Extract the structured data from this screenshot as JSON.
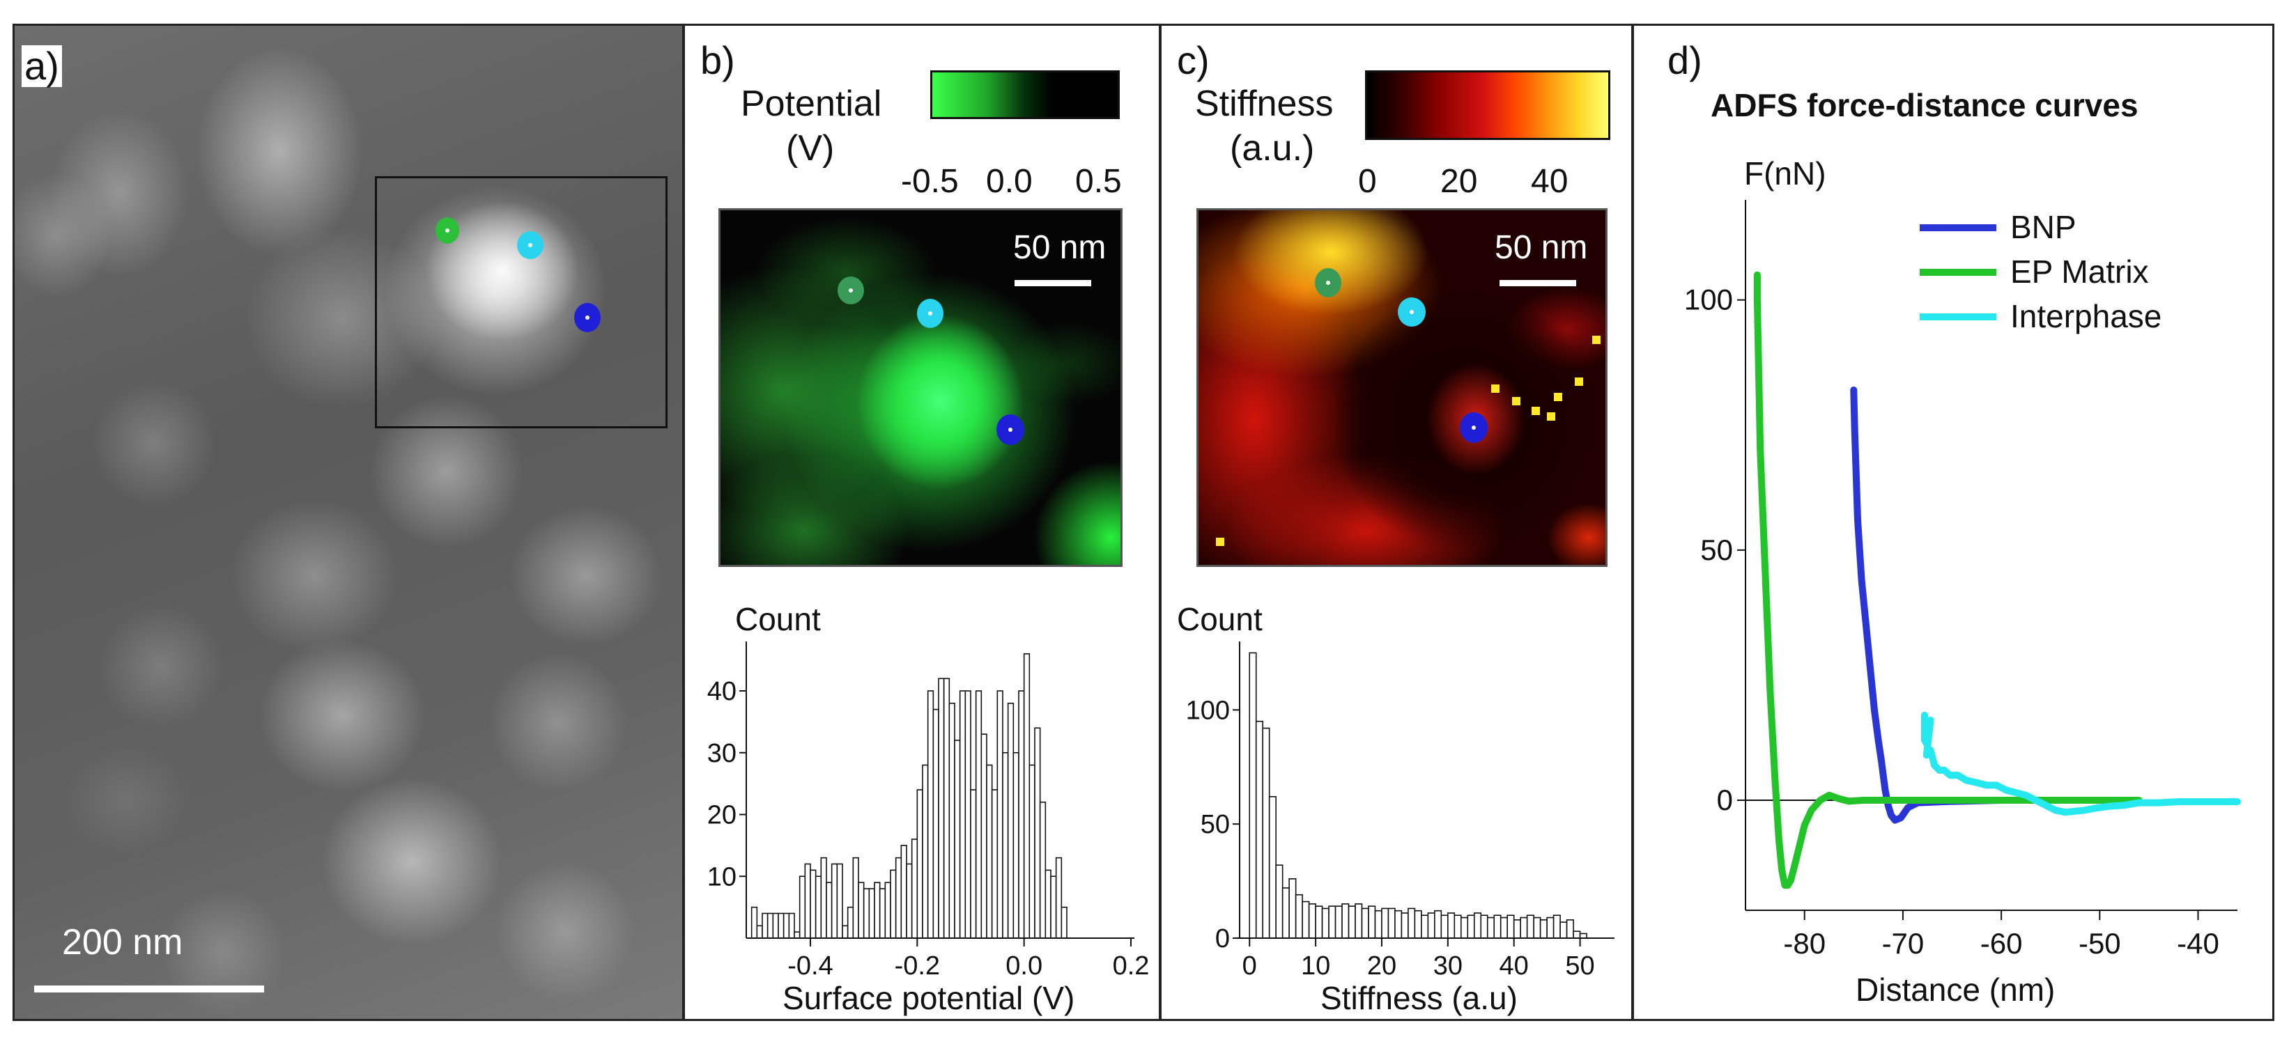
{
  "panel_a": {
    "label": "a)",
    "scale_bar_label": "200 nm"
  },
  "panel_b": {
    "label": "b)",
    "colorbar_title_line1": "Potential",
    "colorbar_title_line2": "(V)",
    "colorbar_ticks": [
      "-0.5",
      "0.0",
      "0.5"
    ],
    "scale_bar_label": "50 nm",
    "histogram": {
      "type": "bar",
      "ylabel": "Count",
      "xlabel": "Surface potential (V)",
      "xlim": [
        -0.52,
        0.2
      ],
      "ylim": [
        0,
        48
      ],
      "xticks": [
        "-0.4",
        "-0.2",
        "0.0",
        "0.2"
      ],
      "xtick_values": [
        -0.4,
        -0.2,
        0.0,
        0.2
      ],
      "yticks": [
        "10",
        "20",
        "30",
        "40"
      ],
      "ytick_values": [
        10,
        20,
        30,
        40
      ],
      "bin_width": 0.01,
      "bin_start": -0.51,
      "values": [
        5,
        2,
        4,
        4,
        4,
        4,
        4,
        4,
        1,
        10,
        12,
        11,
        10,
        13,
        9,
        12,
        12,
        2,
        5,
        13,
        9,
        8,
        8,
        9,
        8,
        9,
        11,
        13,
        15,
        12,
        16,
        24,
        28,
        40,
        37,
        42,
        42,
        38,
        32,
        40,
        40,
        24,
        40,
        33,
        28,
        24,
        40,
        30,
        38,
        30,
        40,
        46,
        28,
        34,
        22,
        11,
        10,
        13,
        5
      ]
    }
  },
  "panel_c": {
    "label": "c)",
    "colorbar_title_line1": "Stiffness",
    "colorbar_title_line2": "(a.u.)",
    "colorbar_ticks": [
      "0",
      "20",
      "40"
    ],
    "scale_bar_label": "50 nm",
    "histogram": {
      "type": "bar",
      "ylabel": "Count",
      "xlabel": "Stiffness (a.u)",
      "xlim": [
        -1.5,
        55
      ],
      "ylim": [
        0,
        130
      ],
      "xticks": [
        "0",
        "10",
        "20",
        "30",
        "40",
        "50"
      ],
      "xtick_values": [
        0,
        10,
        20,
        30,
        40,
        50
      ],
      "yticks": [
        "0",
        "50",
        "100"
      ],
      "ytick_values": [
        0,
        50,
        100
      ],
      "bin_width": 1,
      "bin_start": 0,
      "values": [
        125,
        95,
        92,
        62,
        32,
        22,
        26,
        19,
        16,
        15,
        14,
        13,
        14,
        14,
        15,
        14,
        15,
        13,
        14,
        12,
        13,
        13,
        12,
        11,
        13,
        12,
        10,
        11,
        12,
        10,
        11,
        10,
        9,
        10,
        11,
        10,
        9,
        10,
        9,
        10,
        8,
        9,
        10,
        9,
        8,
        9,
        10,
        7,
        8,
        3,
        2
      ]
    }
  },
  "panel_d": {
    "label": "d)",
    "title": "ADFS force-distance curves",
    "ylabel": "F(nN)",
    "xlabel": "Distance (nm)",
    "xticks": [
      "-80",
      "-70",
      "-60",
      "-50",
      "-40"
    ],
    "xtick_values": [
      -80,
      -70,
      -60,
      -50,
      -40
    ],
    "yticks": [
      "0",
      "50",
      "100"
    ],
    "ytick_values": [
      0,
      50,
      100
    ],
    "legend": [
      "BNP",
      "EP Matrix",
      "Interphase"
    ],
    "chart_data": {
      "type": "line",
      "title": "ADFS force-distance curves",
      "xlabel": "Distance (nm)",
      "ylabel": "F(nN)",
      "xlim": [
        -86,
        -36
      ],
      "ylim": [
        -22,
        120
      ],
      "legend_position": "top-right",
      "series": [
        {
          "name": "BNP",
          "color": "#2a35d6",
          "x": [
            -75,
            -74.9,
            -74.6,
            -74.2,
            -73.8,
            -73.3,
            -72.9,
            -72.5,
            -72.2,
            -72.0,
            -71.8,
            -71.5,
            -71.2,
            -70.8,
            -70.2,
            -69.5,
            -68.5,
            -66,
            -60,
            -54,
            -50,
            -47
          ],
          "y": [
            82,
            74,
            56,
            44,
            36,
            26,
            18,
            12,
            8,
            5,
            2,
            -1,
            -3,
            -4,
            -3.5,
            -1.5,
            -0.5,
            -0.3,
            0,
            0,
            0,
            0
          ]
        },
        {
          "name": "EP Matrix",
          "color": "#22c42a",
          "x": [
            -84.8,
            -84.8,
            -84.5,
            -84.0,
            -83.5,
            -83.0,
            -82.6,
            -82.3,
            -82.0,
            -81.7,
            -81.4,
            -81.0,
            -80.5,
            -80.0,
            -79.3,
            -78.4,
            -77.5,
            -76.5,
            -75.5,
            -74.0,
            -72.0,
            -69.0,
            -65,
            -60,
            -55,
            -50,
            -46
          ],
          "y": [
            105,
            100,
            70,
            46,
            22,
            4,
            -8,
            -14,
            -17,
            -17,
            -16,
            -13,
            -9,
            -5,
            -2,
            0,
            1,
            0.3,
            -0.2,
            0,
            0,
            0,
            0,
            0,
            0,
            0,
            0
          ]
        },
        {
          "name": "Interphase",
          "color": "#26e8ef",
          "x": [
            -67.8,
            -67.8,
            -67.5,
            -67.2,
            -67.6,
            -67.2,
            -66.8,
            -66.3,
            -65.8,
            -65.2,
            -64.4,
            -63.6,
            -62.5,
            -61.5,
            -60.5,
            -59.5,
            -58.5,
            -57.5,
            -56.5,
            -55.5,
            -54.5,
            -53.5,
            -52.5,
            -51.5,
            -50.5,
            -49,
            -47.5,
            -46,
            -44,
            -42,
            -40,
            -38,
            -36
          ],
          "y": [
            17,
            12,
            11,
            16,
            9,
            10,
            7,
            6,
            6,
            5,
            5,
            4,
            3.5,
            3,
            3,
            2,
            1.5,
            1,
            0,
            -1,
            -2,
            -2.4,
            -2.2,
            -2,
            -1.6,
            -1.2,
            -1,
            -0.5,
            -0.5,
            -0.3,
            -0.3,
            -0.3,
            -0.3
          ]
        }
      ]
    }
  },
  "colors": {
    "bnp": "#2a35d6",
    "ep_matrix": "#22c42a",
    "interphase": "#26e8ef",
    "marker_green": "#2cc03a",
    "marker_dark_green": "#3a9a58",
    "marker_cyan": "#2ad3ee",
    "marker_blue": "#1f1fd8"
  }
}
